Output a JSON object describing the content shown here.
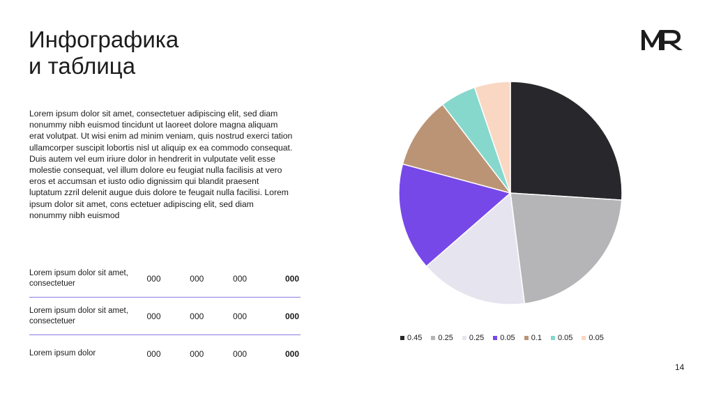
{
  "slide": {
    "title_line1": "Инфографика",
    "title_line2": "и таблица",
    "logo_text": "MR",
    "body": "Lorem ipsum dolor sit amet, consectetuer adipiscing elit, sed diam nonummy nibh euismod tincidunt ut laoreet dolore magna aliquam erat volutpat. Ut wisi enim ad minim veniam, quis nostrud exerci tation ullamcorper suscipit lobortis nisl ut aliquip ex ea commodo consequat. Duis autem vel eum iriure dolor in hendrerit in vulputate velit esse molestie consequat, vel illum dolore eu feugiat nulla facilisis at vero eros et accumsan et iusto odio dignissim qui blandit praesent luptatum zzril delenit augue duis dolore te feugait nulla facilisi. Lorem ipsum dolor sit amet, cons ectetuer adipiscing elit, sed diam nonummy nibh euismod",
    "page_number": "14",
    "accent_color": "#8b7be0"
  },
  "table": {
    "rows": [
      {
        "label": "Lorem ipsum dolor sit amet, consectetuer",
        "v1": "000",
        "v2": "000",
        "v3": "000",
        "v4": "000"
      },
      {
        "label": "Lorem ipsum dolor sit amet, consectetuer",
        "v1": "000",
        "v2": "000",
        "v3": "000",
        "v4": "000"
      },
      {
        "label": "Lorem ipsum dolor",
        "v1": "000",
        "v2": "000",
        "v3": "000",
        "v4": "000"
      }
    ]
  },
  "chart_data": {
    "type": "pie",
    "title": "",
    "legend_position": "bottom",
    "start_angle_deg": 0,
    "direction": "clockwise",
    "slices": [
      {
        "label": "0.45",
        "value": 0.45,
        "color": "#28272c"
      },
      {
        "label": "0.25",
        "value": 0.38,
        "color": "#b5b5b7"
      },
      {
        "label": "0.25",
        "value": 0.27,
        "color": "#e6e4ee"
      },
      {
        "label": "0.05",
        "value": 0.27,
        "color": "#7748e8"
      },
      {
        "label": "0.1",
        "value": 0.18,
        "color": "#bb9476"
      },
      {
        "label": "0.05",
        "value": 0.09,
        "color": "#86d8cc"
      },
      {
        "label": "0.05",
        "value": 0.09,
        "color": "#f9d7c3"
      }
    ]
  }
}
